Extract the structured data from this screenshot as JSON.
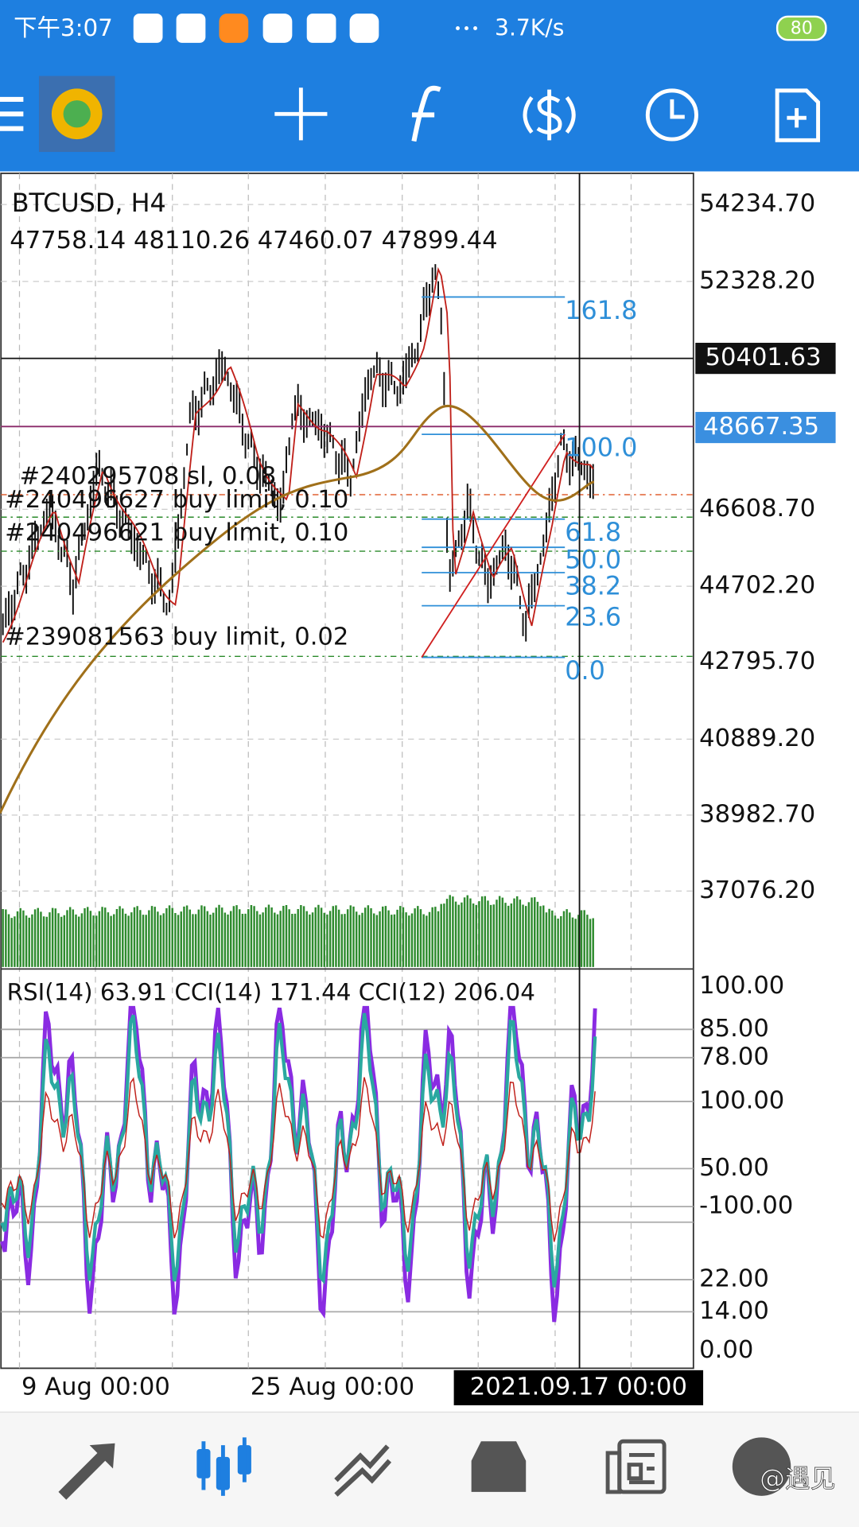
{
  "status_bar": {
    "time": "下午3:07",
    "network_speed": "3.7K/s",
    "battery": "80"
  },
  "chart": {
    "symbol": "BTCUSD, H4",
    "ohlc": "47758.14 48110.26 47460.07 47899.44",
    "price_scale": [
      "54234.70",
      "52328.20",
      "46608.70",
      "44702.20",
      "42795.70",
      "40889.20",
      "38982.70",
      "37076.20"
    ],
    "crosshair_price": "50401.63",
    "bid_price": "48667.35",
    "fibonacci_levels": [
      "161.8",
      "100.0",
      "61.8",
      "50.0",
      "38.2",
      "23.6",
      "0.0"
    ],
    "orders": [
      "#240295708 sl, 0.08",
      "#240496627 buy limit, 0.10",
      "#240496621 buy limit, 0.10",
      "#239081563 buy limit, 0.02"
    ]
  },
  "indicator": {
    "legend": "RSI(14) 63.91 CCI(14) 171.44 CCI(12) 206.04",
    "scale": [
      "100.00",
      "85.00",
      "78.00",
      "100.00",
      "50.00",
      "-100.00",
      "22.00",
      "14.00",
      "0.00"
    ]
  },
  "time_axis": {
    "labels": [
      "9 Aug 00:00",
      "25 Aug 00:00"
    ],
    "crosshair_time": "2021.09.17 00:00"
  },
  "watermark": "@遇见"
}
